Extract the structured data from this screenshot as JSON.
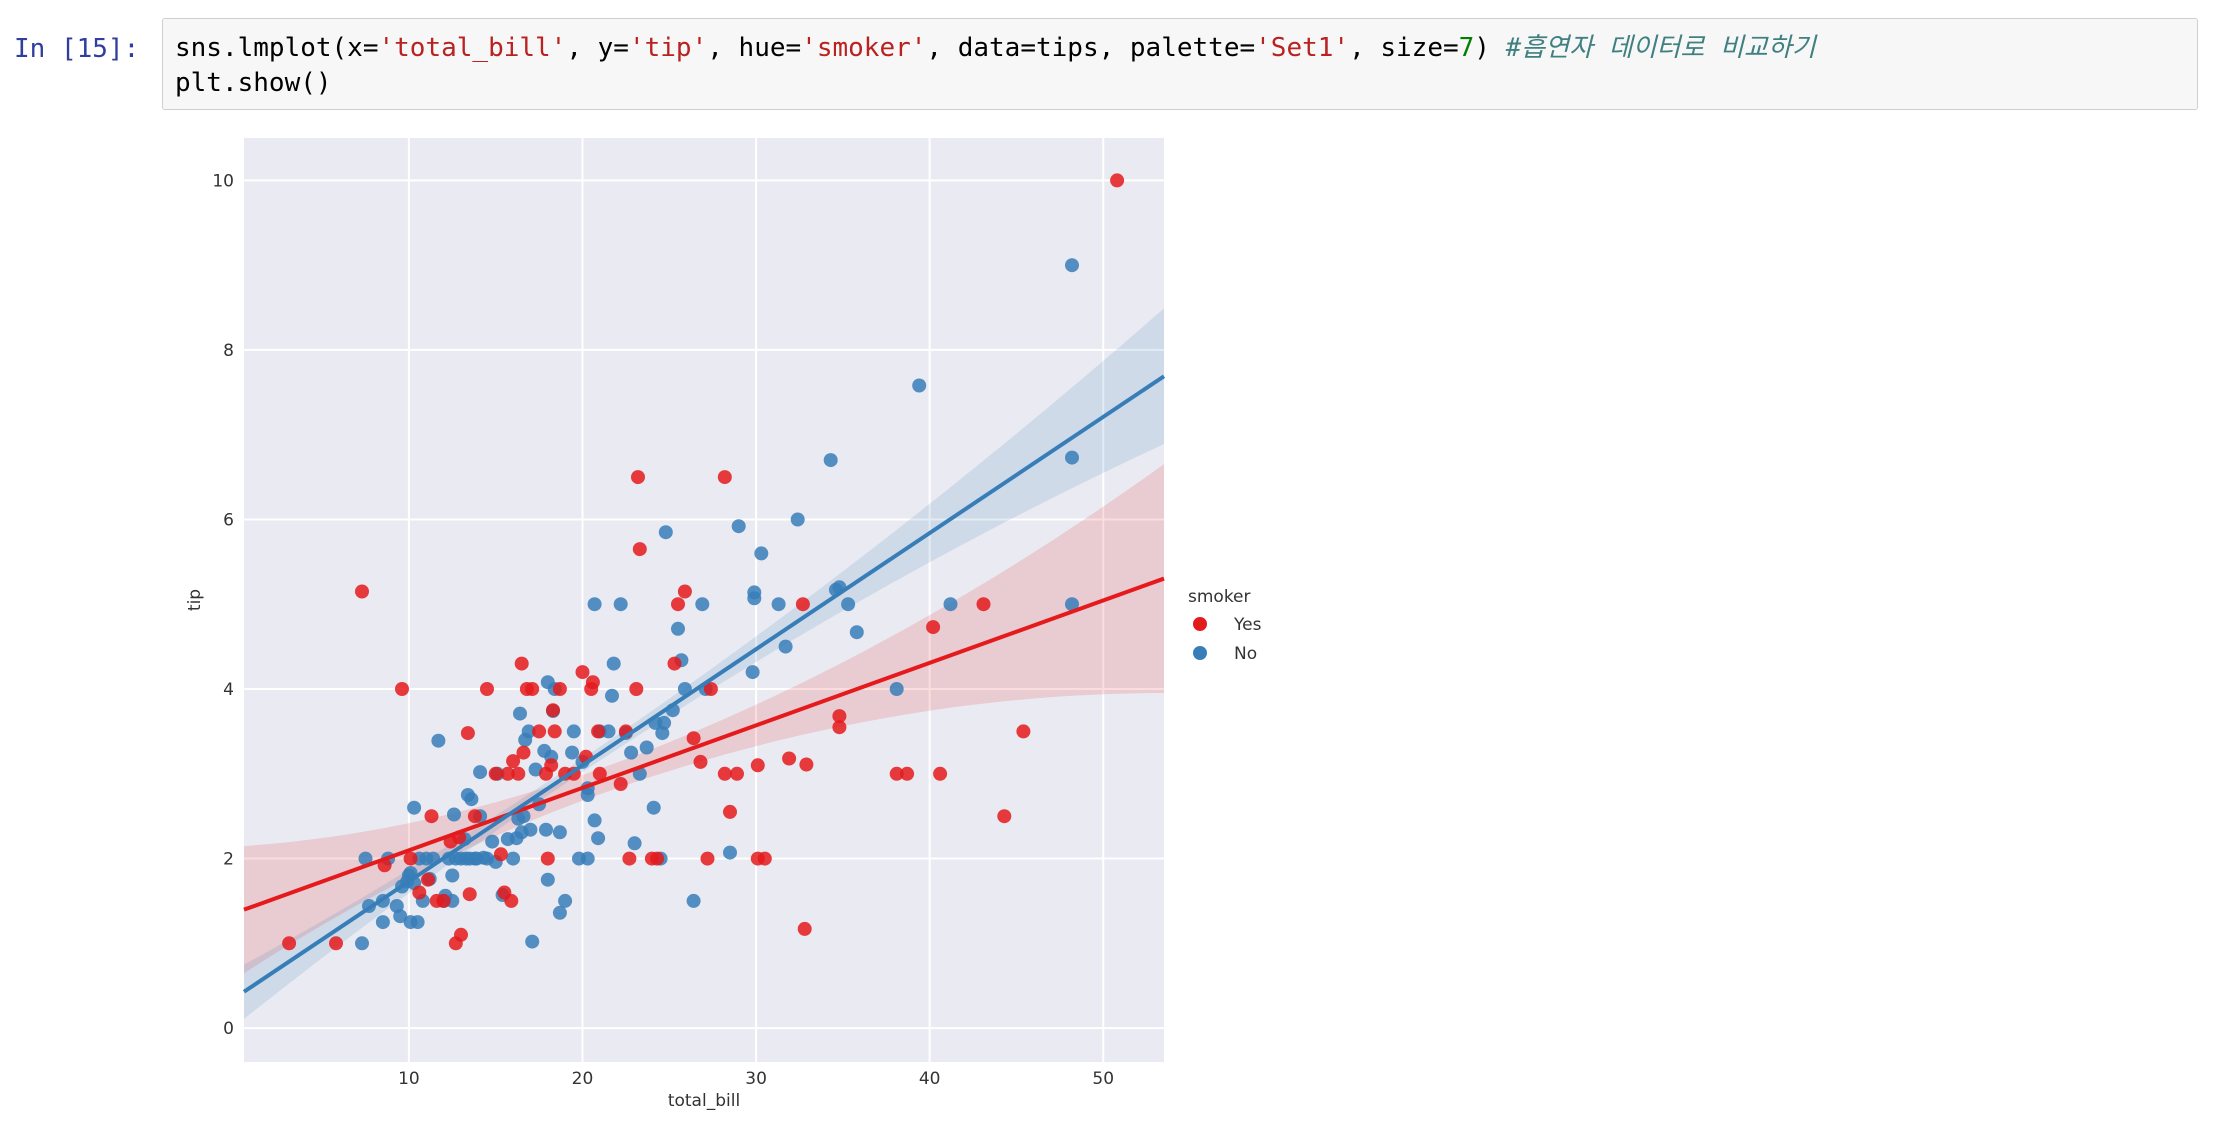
{
  "cell": {
    "prompt": "In [15]:",
    "code_line1": {
      "p1": "sns.lmplot(x=",
      "s1": "'total_bill'",
      "p2": ", y=",
      "s2": "'tip'",
      "p3": ", hue=",
      "s3": "'smoker'",
      "p4": ", data=tips, palette=",
      "s4": "'Set1'",
      "p5": ", size=",
      "n1": "7",
      "p6": ") ",
      "comment": "#흡연자 데이터로 비교하기"
    },
    "code_line2": "plt.show()"
  },
  "colors": {
    "yes": "#e41a1c",
    "no": "#377eb8",
    "plot_bg": "#eaeaf2",
    "grid": "#ffffff"
  },
  "chart_data": {
    "type": "scatter",
    "xlabel": "total_bill",
    "ylabel": "tip",
    "xlim": [
      0.5,
      53.5
    ],
    "ylim": [
      -0.4,
      10.5
    ],
    "xticks": [
      10,
      20,
      30,
      40,
      50
    ],
    "yticks": [
      0,
      2,
      4,
      6,
      8,
      10
    ],
    "grid": true,
    "legend": {
      "title": "smoker",
      "placement": "right"
    },
    "series": [
      {
        "name": "Yes",
        "color": "#e41a1c",
        "fit": {
          "intercept": 1.36,
          "slope": 0.0737,
          "ci_half_at_xmin": 0.75,
          "ci_half_at_mean": 0.15,
          "ci_half_at_xmax": 1.35,
          "mean_x": 20.8
        },
        "points": [
          [
            3.1,
            1
          ],
          [
            5.8,
            1
          ],
          [
            7.3,
            5.15
          ],
          [
            8.6,
            1.92
          ],
          [
            9.6,
            4
          ],
          [
            10.1,
            2
          ],
          [
            10.6,
            1.6
          ],
          [
            11.1,
            1.75
          ],
          [
            11.3,
            2.5
          ],
          [
            11.6,
            1.5
          ],
          [
            12.0,
            1.5
          ],
          [
            12.4,
            2.2
          ],
          [
            12.7,
            1
          ],
          [
            12.9,
            2.25
          ],
          [
            13.0,
            1.1
          ],
          [
            13.4,
            3.48
          ],
          [
            13.5,
            1.58
          ],
          [
            13.8,
            2.5
          ],
          [
            14.5,
            4
          ],
          [
            15.0,
            3
          ],
          [
            15.3,
            2.05
          ],
          [
            15.5,
            1.6
          ],
          [
            15.7,
            3
          ],
          [
            15.9,
            1.5
          ],
          [
            16.0,
            3.15
          ],
          [
            16.3,
            3
          ],
          [
            16.5,
            4.3
          ],
          [
            16.6,
            3.25
          ],
          [
            16.8,
            4
          ],
          [
            17.1,
            4
          ],
          [
            17.5,
            3.5
          ],
          [
            17.9,
            3
          ],
          [
            18.0,
            2
          ],
          [
            18.2,
            3.1
          ],
          [
            18.3,
            3.75
          ],
          [
            18.4,
            3.5
          ],
          [
            18.7,
            4
          ],
          [
            19.0,
            3
          ],
          [
            19.5,
            3
          ],
          [
            20.0,
            4.2
          ],
          [
            20.2,
            3.2
          ],
          [
            20.5,
            4
          ],
          [
            20.6,
            4.08
          ],
          [
            20.9,
            3.5
          ],
          [
            21.0,
            3
          ],
          [
            22.2,
            2.88
          ],
          [
            22.5,
            3.5
          ],
          [
            22.7,
            2
          ],
          [
            23.1,
            4
          ],
          [
            23.2,
            6.5
          ],
          [
            23.3,
            5.65
          ],
          [
            24.0,
            2
          ],
          [
            24.3,
            2
          ],
          [
            25.3,
            4.3
          ],
          [
            25.5,
            5
          ],
          [
            25.9,
            5.15
          ],
          [
            26.4,
            3.42
          ],
          [
            26.8,
            3.14
          ],
          [
            27.2,
            2
          ],
          [
            27.4,
            4
          ],
          [
            28.2,
            3
          ],
          [
            28.2,
            6.5
          ],
          [
            28.5,
            2.55
          ],
          [
            28.9,
            3
          ],
          [
            30.1,
            3.1
          ],
          [
            30.1,
            2
          ],
          [
            30.5,
            2
          ],
          [
            31.9,
            3.18
          ],
          [
            32.7,
            5
          ],
          [
            32.8,
            1.17
          ],
          [
            32.9,
            3.11
          ],
          [
            34.8,
            3.55
          ],
          [
            34.8,
            3.68
          ],
          [
            38.1,
            3
          ],
          [
            38.7,
            3
          ],
          [
            40.2,
            4.73
          ],
          [
            40.6,
            3
          ],
          [
            43.1,
            5
          ],
          [
            44.3,
            2.5
          ],
          [
            45.4,
            3.5
          ],
          [
            50.8,
            10
          ]
        ]
      },
      {
        "name": "No",
        "color": "#377eb8",
        "fit": {
          "intercept": 0.36,
          "slope": 0.137,
          "ci_half_at_xmin": 0.32,
          "ci_half_at_mean": 0.08,
          "ci_half_at_xmax": 0.8,
          "mean_x": 19.2
        },
        "points": [
          [
            7.3,
            1
          ],
          [
            7.5,
            2
          ],
          [
            7.7,
            1.44
          ],
          [
            8.5,
            1.25
          ],
          [
            8.5,
            1.5
          ],
          [
            8.8,
            2
          ],
          [
            9.3,
            1.44
          ],
          [
            9.5,
            1.32
          ],
          [
            9.6,
            1.67
          ],
          [
            9.9,
            1.73
          ],
          [
            10.0,
            1.8
          ],
          [
            10.1,
            1.25
          ],
          [
            10.1,
            1.83
          ],
          [
            10.3,
            2.6
          ],
          [
            10.3,
            1.71
          ],
          [
            10.5,
            1.25
          ],
          [
            10.6,
            2
          ],
          [
            10.8,
            1.5
          ],
          [
            11.0,
            2
          ],
          [
            11.2,
            1.76
          ],
          [
            11.4,
            2
          ],
          [
            11.7,
            3.39
          ],
          [
            12.0,
            1.5
          ],
          [
            12.1,
            1.56
          ],
          [
            12.3,
            2
          ],
          [
            12.5,
            1.5
          ],
          [
            12.5,
            1.8
          ],
          [
            12.6,
            2.52
          ],
          [
            12.7,
            2
          ],
          [
            13.0,
            2
          ],
          [
            13.2,
            2.23
          ],
          [
            13.3,
            2
          ],
          [
            13.4,
            2.75
          ],
          [
            13.5,
            2
          ],
          [
            13.6,
            2.7
          ],
          [
            13.8,
            2
          ],
          [
            13.9,
            2
          ],
          [
            14.1,
            3.02
          ],
          [
            14.1,
            2.5
          ],
          [
            14.3,
            2.01
          ],
          [
            14.5,
            2
          ],
          [
            14.8,
            2.2
          ],
          [
            15.0,
            1.96
          ],
          [
            15.1,
            3
          ],
          [
            15.4,
            1.57
          ],
          [
            15.7,
            2.23
          ],
          [
            16.0,
            2
          ],
          [
            16.2,
            2.24
          ],
          [
            16.3,
            2.47
          ],
          [
            16.4,
            3.71
          ],
          [
            16.5,
            2.31
          ],
          [
            16.6,
            2.5
          ],
          [
            16.7,
            3.4
          ],
          [
            16.9,
            3.5
          ],
          [
            17.0,
            2.34
          ],
          [
            17.1,
            1.02
          ],
          [
            17.3,
            3.05
          ],
          [
            17.5,
            2.64
          ],
          [
            17.8,
            3.27
          ],
          [
            17.9,
            2.34
          ],
          [
            18.0,
            4.08
          ],
          [
            18.0,
            1.75
          ],
          [
            18.2,
            3.2
          ],
          [
            18.3,
            3.74
          ],
          [
            18.4,
            4
          ],
          [
            18.7,
            2.31
          ],
          [
            18.7,
            1.36
          ],
          [
            19.0,
            1.5
          ],
          [
            19.4,
            3.25
          ],
          [
            19.5,
            3.5
          ],
          [
            19.8,
            2
          ],
          [
            20.0,
            3.14
          ],
          [
            20.3,
            2
          ],
          [
            20.3,
            2.83
          ],
          [
            20.3,
            2.75
          ],
          [
            20.7,
            2.45
          ],
          [
            20.7,
            5
          ],
          [
            20.9,
            2.24
          ],
          [
            21.0,
            3.5
          ],
          [
            21.5,
            3.5
          ],
          [
            21.7,
            3.92
          ],
          [
            21.8,
            4.3
          ],
          [
            22.2,
            5
          ],
          [
            22.5,
            3.48
          ],
          [
            22.8,
            3.25
          ],
          [
            23.0,
            2.18
          ],
          [
            23.3,
            3
          ],
          [
            23.7,
            3.31
          ],
          [
            24.1,
            2.6
          ],
          [
            24.2,
            3.6
          ],
          [
            24.5,
            2
          ],
          [
            24.6,
            3.48
          ],
          [
            24.7,
            3.6
          ],
          [
            24.8,
            5.85
          ],
          [
            25.2,
            3.75
          ],
          [
            25.5,
            4.71
          ],
          [
            25.7,
            4.34
          ],
          [
            25.9,
            4
          ],
          [
            26.4,
            1.5
          ],
          [
            26.9,
            5
          ],
          [
            27.1,
            4
          ],
          [
            28.5,
            2.07
          ],
          [
            29.0,
            5.92
          ],
          [
            29.8,
            4.2
          ],
          [
            29.9,
            5.07
          ],
          [
            29.9,
            5.14
          ],
          [
            30.3,
            5.6
          ],
          [
            31.3,
            5
          ],
          [
            31.7,
            4.5
          ],
          [
            32.4,
            6
          ],
          [
            34.3,
            6.7
          ],
          [
            34.6,
            5.17
          ],
          [
            34.8,
            5.2
          ],
          [
            35.3,
            5
          ],
          [
            35.8,
            4.67
          ],
          [
            38.1,
            4
          ],
          [
            39.4,
            7.58
          ],
          [
            41.2,
            5
          ],
          [
            48.2,
            5
          ],
          [
            48.2,
            9
          ],
          [
            48.2,
            6.73
          ]
        ]
      }
    ]
  }
}
